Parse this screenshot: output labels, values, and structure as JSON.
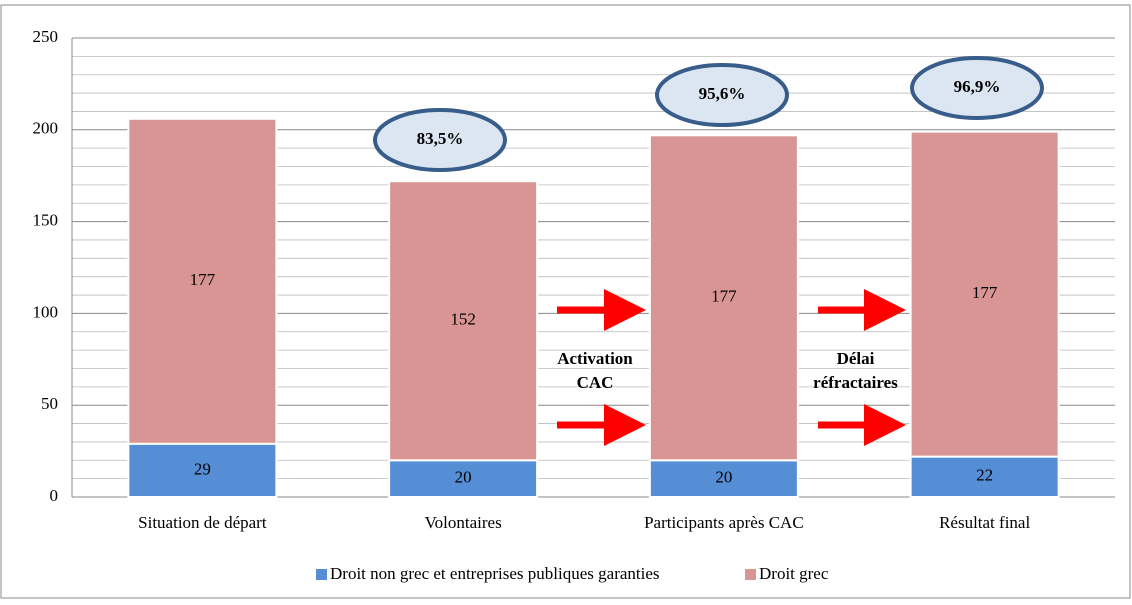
{
  "chart_data": {
    "type": "stacked_bar",
    "categories": [
      "Situation de départ",
      "Volontaires",
      "Participants après CAC",
      "Résultat final"
    ],
    "series": [
      {
        "name": "Droit non grec et entreprises publiques garanties",
        "color": "#558ed5",
        "values": [
          29,
          20,
          20,
          22
        ]
      },
      {
        "name": "Droit grec",
        "color": "#d99594",
        "values": [
          177,
          152,
          177,
          177
        ]
      }
    ],
    "ylim": [
      0,
      250
    ],
    "yticks": [
      0,
      50,
      100,
      150,
      200,
      250
    ],
    "minor_yticks": [
      10,
      20,
      30,
      40,
      60,
      70,
      80,
      90,
      110,
      120,
      130,
      140,
      160,
      170,
      180,
      190,
      210,
      220,
      230,
      240
    ],
    "grid": true,
    "legend": "bottom",
    "annotations": [
      "83,5%",
      "95,6%",
      "96,9%"
    ],
    "step_labels": [
      [
        "Activation",
        "CAC"
      ],
      [
        "Délai",
        "réfractaires"
      ]
    ]
  }
}
